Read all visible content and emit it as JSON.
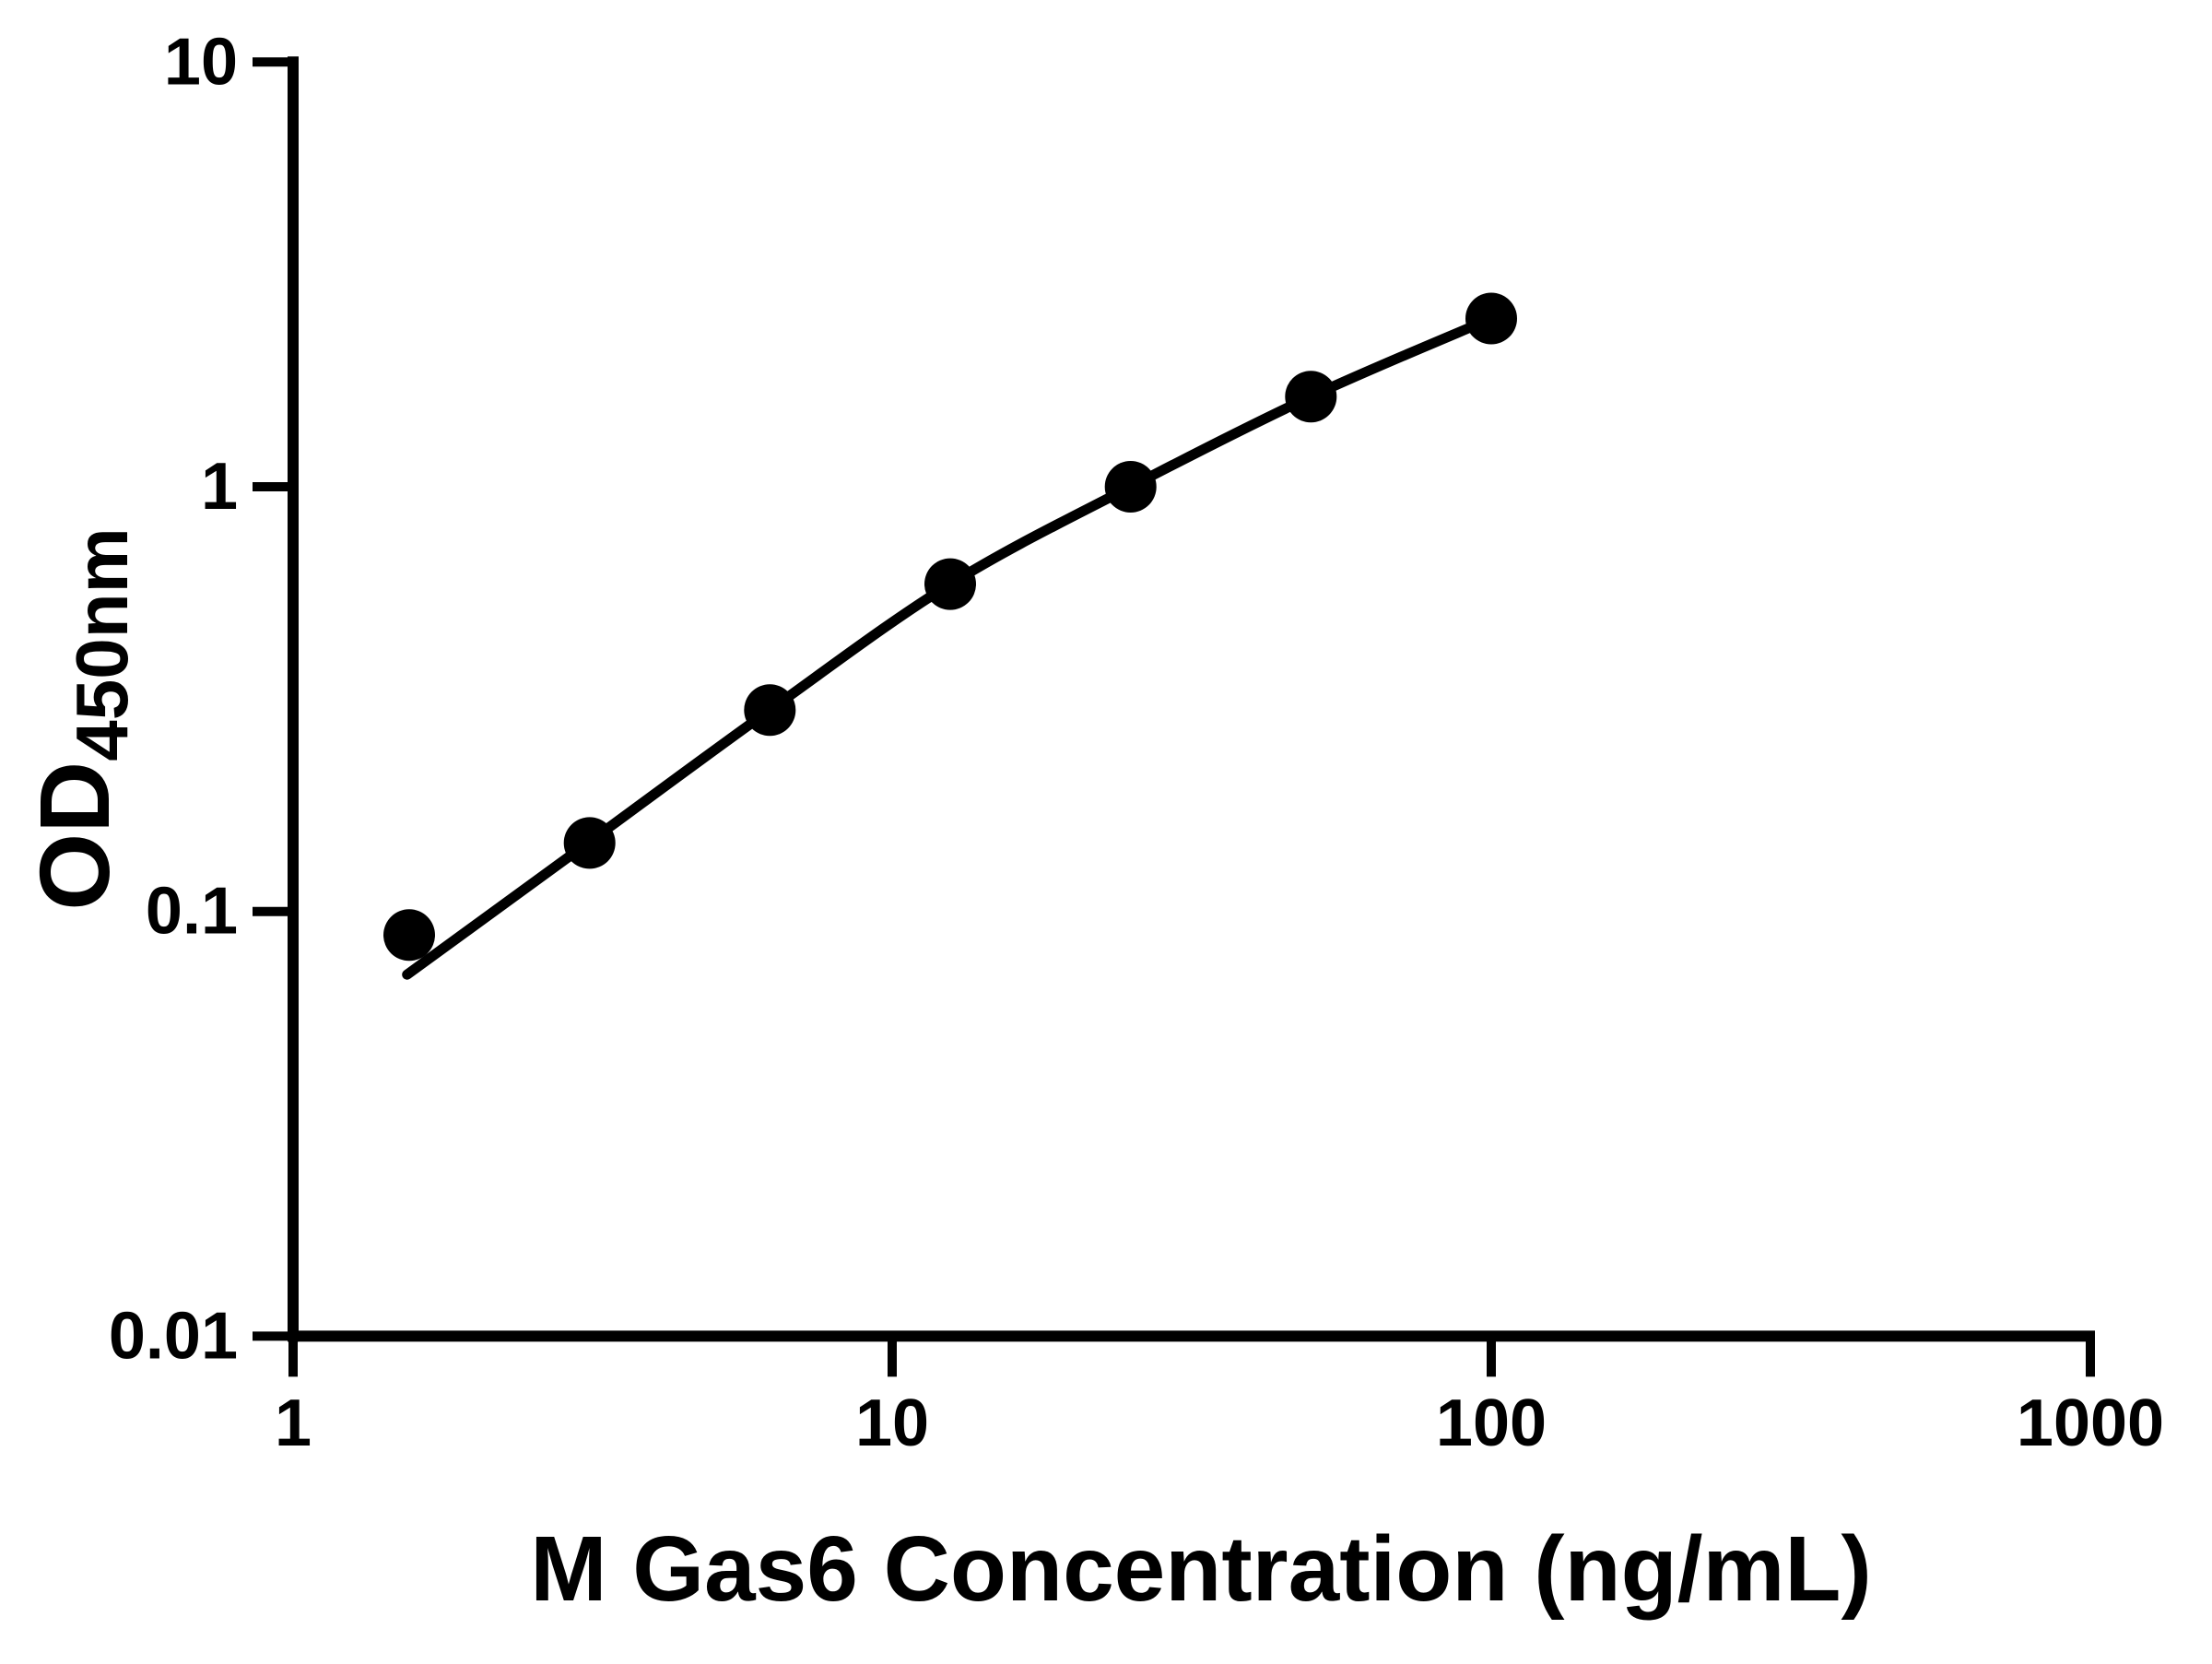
{
  "figure": {
    "background": "#ffffff",
    "ink_color": "#000000"
  },
  "chart_data": {
    "type": "scatter",
    "title": "",
    "xlabel": "M Gas6 Concentration (ng/mL)",
    "ylabel": "OD",
    "ylabel_subscript": "450nm",
    "x_scale": "log10",
    "y_scale": "log10",
    "xlim": [
      1,
      1000
    ],
    "ylim": [
      0.01,
      10
    ],
    "x_ticks": [
      1,
      10,
      100,
      1000
    ],
    "x_tick_labels": [
      "1",
      "10",
      "100",
      "1000"
    ],
    "y_ticks": [
      10,
      1,
      0.1,
      0.01
    ],
    "y_tick_labels": [
      "10",
      "1",
      "0.1",
      "0.01"
    ],
    "grid": false,
    "legend": null,
    "marker_color": "#000000",
    "line_color": "#000000",
    "series": [
      {
        "name": "standard-curve",
        "marker": "circle",
        "x": [
          1.5625,
          3.125,
          6.25,
          12.5,
          25,
          50,
          100
        ],
        "y": [
          0.088,
          0.145,
          0.298,
          0.59,
          1.0,
          1.63,
          2.49
        ]
      }
    ],
    "fit_curve": {
      "name": "4pl-fit",
      "points": [
        [
          1.55,
          0.071
        ],
        [
          3.125,
          0.146
        ],
        [
          6.25,
          0.298
        ],
        [
          12.5,
          0.59
        ],
        [
          25,
          1.0
        ],
        [
          50,
          1.63
        ],
        [
          100,
          2.49
        ]
      ]
    }
  }
}
